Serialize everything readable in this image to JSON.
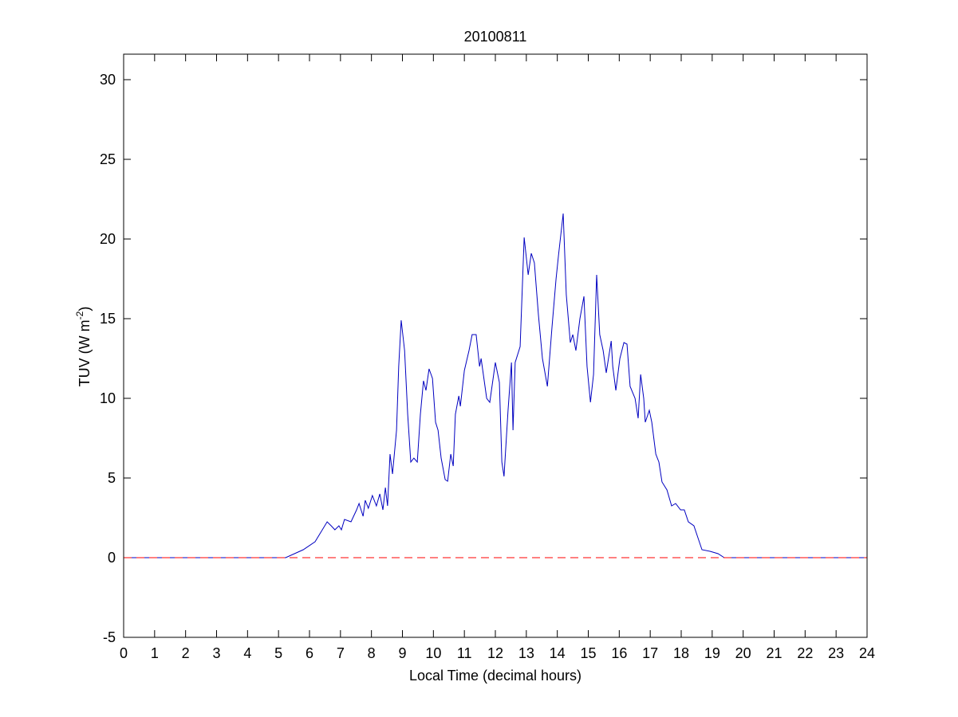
{
  "chart_data": {
    "type": "line",
    "title": "20100811",
    "xlabel": "Local Time (decimal hours)",
    "ylabel": {
      "text": "TUV (W m",
      "superscript": "-2",
      "suffix": ")"
    },
    "x": [
      0,
      5.23,
      5.8,
      6.18,
      6.57,
      6.7,
      6.82,
      6.95,
      7.03,
      7.13,
      7.34,
      7.52,
      7.6,
      7.73,
      7.8,
      7.9,
      8.03,
      8.16,
      8.27,
      8.37,
      8.45,
      8.52,
      8.6,
      8.68,
      8.81,
      8.88,
      8.96,
      9.07,
      9.17,
      9.27,
      9.37,
      9.48,
      9.58,
      9.68,
      9.76,
      9.86,
      9.97,
      10.07,
      10.15,
      10.25,
      10.38,
      10.46,
      10.56,
      10.64,
      10.71,
      10.82,
      10.87,
      11.0,
      11.15,
      11.25,
      11.38,
      11.49,
      11.54,
      11.72,
      11.82,
      12.0,
      12.13,
      12.21,
      12.28,
      12.41,
      12.52,
      12.57,
      12.64,
      12.8,
      12.93,
      13.06,
      13.16,
      13.26,
      13.39,
      13.52,
      13.68,
      13.83,
      13.96,
      14.04,
      14.19,
      14.29,
      14.42,
      14.5,
      14.6,
      14.73,
      14.86,
      14.96,
      15.07,
      15.17,
      15.27,
      15.37,
      15.48,
      15.58,
      15.74,
      15.79,
      15.89,
      16.02,
      16.15,
      16.25,
      16.35,
      16.51,
      16.61,
      16.69,
      16.79,
      16.84,
      16.97,
      17.05,
      17.18,
      17.28,
      17.38,
      17.54,
      17.69,
      17.82,
      17.98,
      18.1,
      18.23,
      18.41,
      18.54,
      18.67,
      18.93,
      19.19,
      19.39,
      24
    ],
    "values": [
      0,
      0,
      0.5,
      1.0,
      2.25,
      2.0,
      1.75,
      2.0,
      1.75,
      2.4,
      2.25,
      3.0,
      3.4,
      2.6,
      3.6,
      3.1,
      3.9,
      3.25,
      4.0,
      3.0,
      4.4,
      3.25,
      6.5,
      5.25,
      8.0,
      12.0,
      14.9,
      13.0,
      9.0,
      6.0,
      6.25,
      6.0,
      9.0,
      11.1,
      10.5,
      11.85,
      11.25,
      8.5,
      8.0,
      6.25,
      4.9,
      4.8,
      6.5,
      5.75,
      9.0,
      10.15,
      9.5,
      11.75,
      13.0,
      14.0,
      14.0,
      12.0,
      12.5,
      10.0,
      9.75,
      12.25,
      11.0,
      6.0,
      5.1,
      9.25,
      12.25,
      8.0,
      12.25,
      13.25,
      20.1,
      17.75,
      19.1,
      18.5,
      15.25,
      12.5,
      10.75,
      14.5,
      17.5,
      19.0,
      21.6,
      16.5,
      13.5,
      14.0,
      13.0,
      15.0,
      16.4,
      12.0,
      9.75,
      11.5,
      17.75,
      14.0,
      13.0,
      11.6,
      13.6,
      12.0,
      10.5,
      12.5,
      13.5,
      13.4,
      10.75,
      10.0,
      8.75,
      11.5,
      10.0,
      8.5,
      9.25,
      8.5,
      6.5,
      6.0,
      4.75,
      4.25,
      3.25,
      3.4,
      3.0,
      3.0,
      2.25,
      2.0,
      1.25,
      0.5,
      0.4,
      0.25,
      0,
      0
    ],
    "color": "#0000c0",
    "reference_line": {
      "value": 0,
      "color": "#ff0000",
      "style": "dashed"
    },
    "xlim": [
      0,
      24
    ],
    "xticks": [
      0,
      1,
      2,
      3,
      4,
      5,
      6,
      7,
      8,
      9,
      10,
      11,
      12,
      13,
      14,
      15,
      16,
      17,
      18,
      19,
      20,
      21,
      22,
      23,
      24
    ],
    "ylim": [
      -5,
      31.6
    ],
    "yticks": [
      -5,
      0,
      5,
      10,
      15,
      20,
      25,
      30
    ],
    "grid": false
  }
}
